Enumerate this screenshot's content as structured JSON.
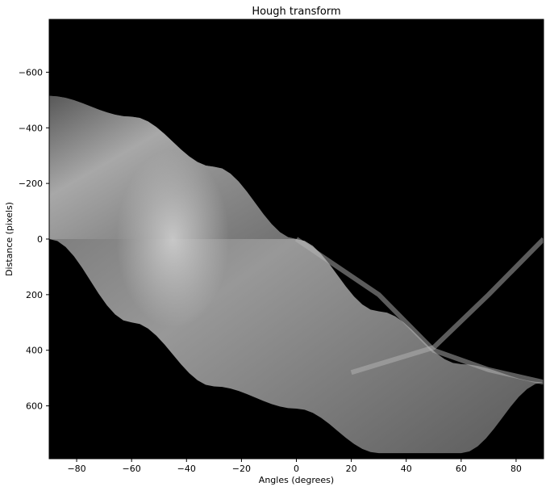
{
  "chart_data": {
    "type": "heatmap",
    "title": "Hough transform",
    "xlabel": "Angles (degrees)",
    "ylabel": "Distance (pixels)",
    "xlim": [
      -90,
      90
    ],
    "ylim": [
      790,
      -790
    ],
    "y_inverted": true,
    "colormap": "gray",
    "grid": false,
    "x_ticks": [
      -80,
      -60,
      -40,
      -20,
      0,
      20,
      40,
      60,
      80
    ],
    "x_tick_labels": [
      "−80",
      "−60",
      "−40",
      "−20",
      "0",
      "20",
      "40",
      "60",
      "80"
    ],
    "y_ticks": [
      -600,
      -400,
      -200,
      0,
      200,
      400,
      600
    ],
    "y_tick_labels": [
      "−600",
      "−400",
      "−200",
      "0",
      "200",
      "400",
      "600"
    ],
    "image_region_boundaries": {
      "upper_sinusoid": {
        "angle_deg": [
          -90,
          -60,
          -30,
          0,
          30,
          60,
          90
        ],
        "distance": [
          -515,
          -440,
          -260,
          0,
          260,
          450,
          515
        ]
      },
      "lower_sinusoid": {
        "angle_deg": [
          -90,
          -60,
          -30,
          0,
          30,
          60,
          90
        ],
        "distance": [
          0,
          300,
          530,
          610,
          770,
          770,
          515
        ]
      }
    },
    "colors": {
      "background": "#000000",
      "band_dark": "#3a3a3a",
      "band_mid": "#8a8a8a",
      "band_bright": "#c8c8c8"
    }
  }
}
